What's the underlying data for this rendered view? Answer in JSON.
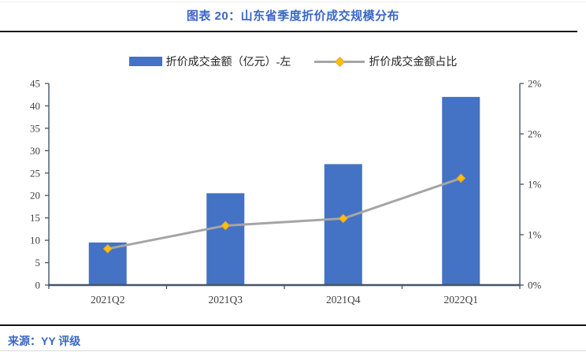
{
  "header": {
    "title": "图表 20：山东省季度折价成交规模分布"
  },
  "legend": {
    "items": [
      {
        "label": "折价成交金额（亿元）-左",
        "type": "bar",
        "color": "#4472C4"
      },
      {
        "label": "折价成交金额占比",
        "type": "line",
        "color": "#A5A5A5",
        "marker_color": "#FFC000"
      }
    ]
  },
  "footer": {
    "source": "来源：YY 评级"
  },
  "colors": {
    "bar": "#4472C4",
    "line": "#A5A5A5",
    "marker": "#FFC000",
    "marker_edge": "#E6A23C",
    "axis": "#44546A",
    "tick_text": "#3f3f3f",
    "title_accent": "#3A66C4"
  },
  "chart_data": {
    "type": "bar",
    "subtype": "combo-bar-line-dual-axis",
    "title": "图表 20：山东省季度折价成交规模分布",
    "categories": [
      "2021Q2",
      "2021Q3",
      "2021Q4",
      "2022Q1"
    ],
    "series": [
      {
        "name": "折价成交金额（亿元）-左",
        "type": "bar",
        "axis": "left",
        "values": [
          9.5,
          20.5,
          27,
          42
        ]
      },
      {
        "name": "折价成交金额占比",
        "type": "line",
        "axis": "right",
        "marker": "diamond",
        "values": [
          0.36,
          0.59,
          0.66,
          1.06
        ]
      }
    ],
    "left_axis": {
      "min": 0,
      "max": 45,
      "step": 5,
      "tick_labels": [
        "0",
        "5",
        "10",
        "15",
        "20",
        "25",
        "30",
        "35",
        "40",
        "45"
      ]
    },
    "right_axis": {
      "min": 0,
      "max": 2,
      "step": 0.5,
      "unit": "%",
      "tick_labels": [
        "0%",
        "1%",
        "1%",
        "2%",
        "2%"
      ]
    },
    "xlabel": "",
    "ylabel": "",
    "grid": false,
    "legend_position": "top"
  }
}
